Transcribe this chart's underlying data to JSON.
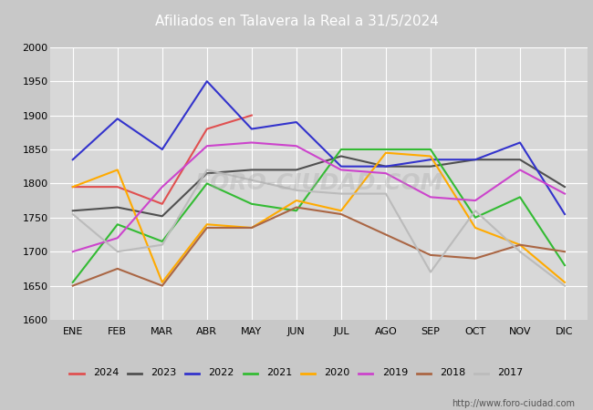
{
  "title": "Afiliados en Talavera la Real a 31/5/2024",
  "title_bg_color": "#4472c4",
  "title_text_color": "white",
  "months": [
    "ENE",
    "FEB",
    "MAR",
    "ABR",
    "MAY",
    "JUN",
    "JUL",
    "AGO",
    "SEP",
    "OCT",
    "NOV",
    "DIC"
  ],
  "ylim": [
    1600,
    2000
  ],
  "yticks": [
    1600,
    1650,
    1700,
    1750,
    1800,
    1850,
    1900,
    1950,
    2000
  ],
  "fig_bg_color": "#c8c8c8",
  "plot_bg_color": "#d8d8d8",
  "grid_color": "white",
  "watermark": "FORO-CIUDAD.COM",
  "url": "http://www.foro-ciudad.com",
  "series": [
    {
      "year": "2024",
      "color": "#e05050",
      "data": [
        1795,
        1795,
        1770,
        1880,
        1900,
        null,
        null,
        null,
        null,
        null,
        null,
        null
      ]
    },
    {
      "year": "2023",
      "color": "#505050",
      "data": [
        1760,
        1765,
        1752,
        1815,
        1820,
        1820,
        1840,
        1825,
        1825,
        1835,
        1835,
        1795
      ]
    },
    {
      "year": "2022",
      "color": "#3333cc",
      "data": [
        1835,
        1895,
        1850,
        1950,
        1880,
        1890,
        1825,
        1825,
        1835,
        1835,
        1860,
        1755
      ]
    },
    {
      "year": "2021",
      "color": "#33bb33",
      "data": [
        1655,
        1740,
        1715,
        1800,
        1770,
        1760,
        1850,
        1850,
        1850,
        1750,
        1780,
        1680
      ]
    },
    {
      "year": "2020",
      "color": "#ffaa00",
      "data": [
        1795,
        1820,
        1655,
        1740,
        1735,
        1775,
        1760,
        1845,
        1840,
        1735,
        1710,
        1655
      ]
    },
    {
      "year": "2019",
      "color": "#cc44cc",
      "data": [
        1700,
        1720,
        1795,
        1855,
        1860,
        1855,
        1820,
        1815,
        1780,
        1775,
        1820,
        1785
      ]
    },
    {
      "year": "2018",
      "color": "#aa6644",
      "data": [
        1650,
        1675,
        1650,
        1735,
        1735,
        1765,
        1755,
        1725,
        1695,
        1690,
        1710,
        1700
      ]
    },
    {
      "year": "2017",
      "color": "#bbbbbb",
      "data": [
        1755,
        1700,
        1710,
        1820,
        1805,
        1790,
        1785,
        1785,
        1670,
        1760,
        1700,
        1650
      ]
    }
  ]
}
